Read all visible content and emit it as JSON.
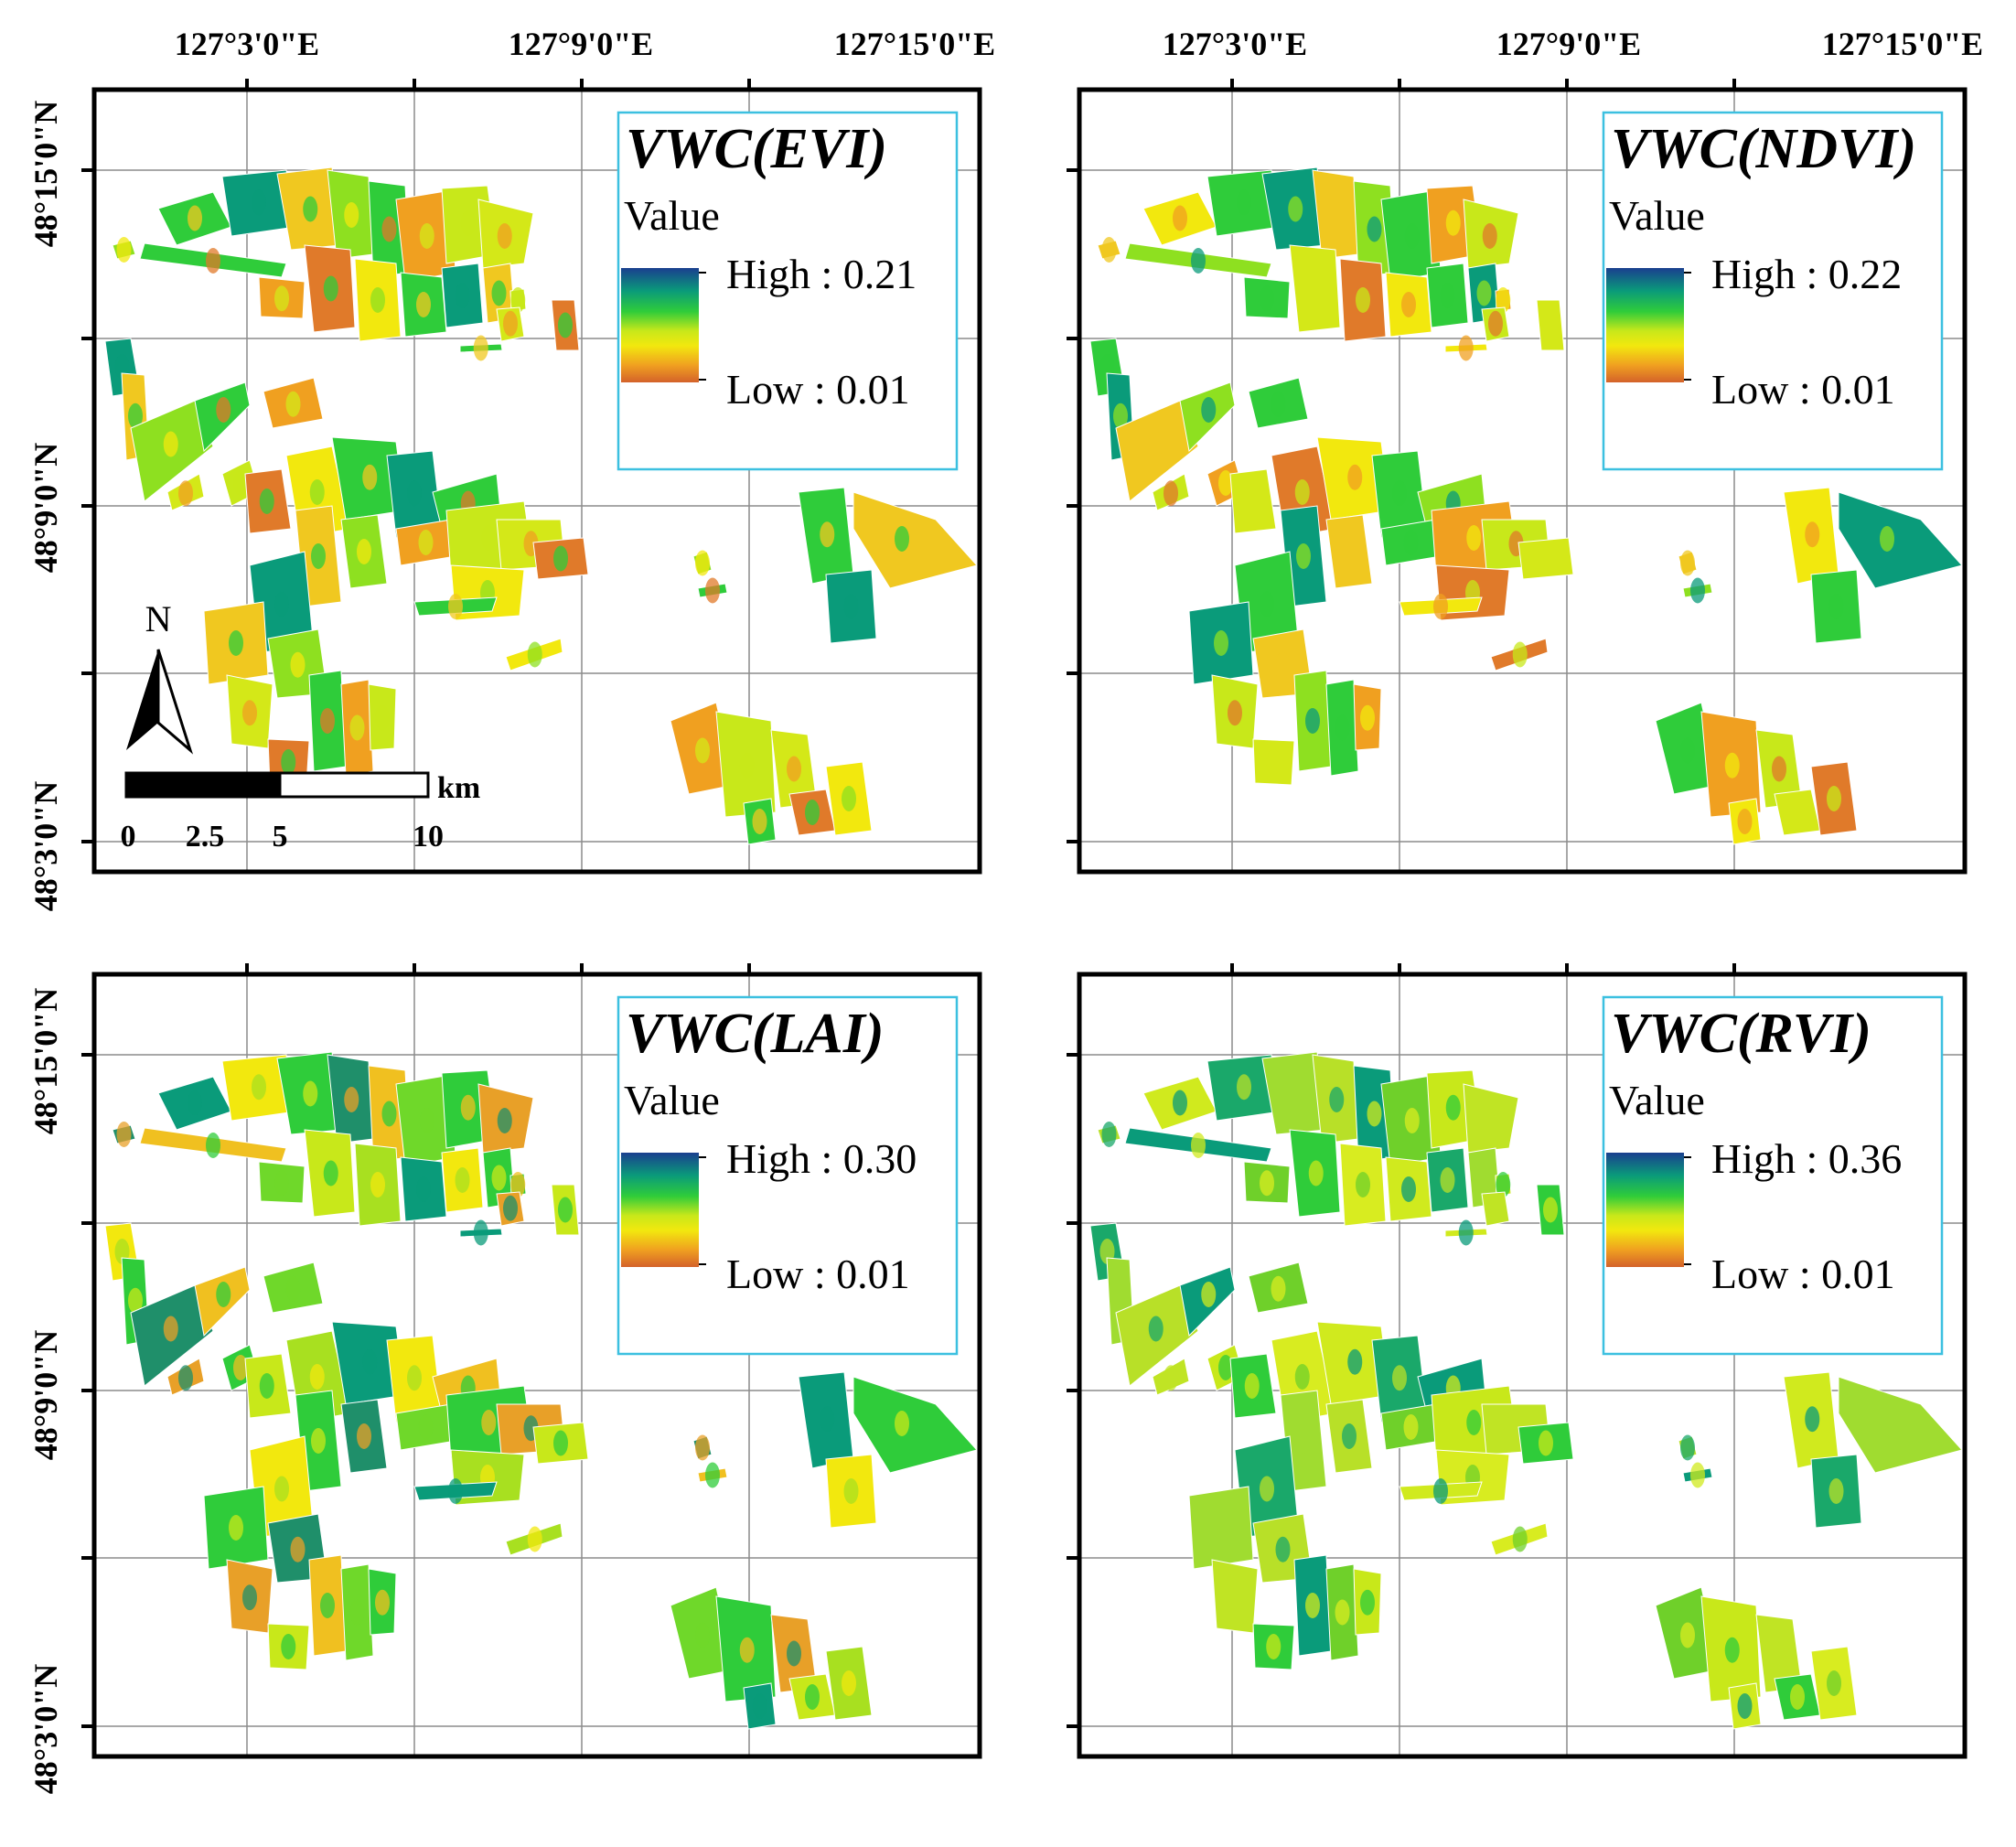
{
  "axes": {
    "top_lon_labels": [
      "127°3'0\"E",
      "127°9'0\"E",
      "127°15'0\"E"
    ],
    "left_lat_labels": [
      "48°15'0\"N",
      "48°9'0\"N",
      "48°3'0\"N"
    ]
  },
  "panels": [
    {
      "id": "evi",
      "title": "VWC(EVI)",
      "legend_heading": "Value",
      "high_label": "High : 0.21",
      "low_label": "Low : 0.01",
      "palette": "warm"
    },
    {
      "id": "ndvi",
      "title": "VWC(NDVI)",
      "legend_heading": "Value",
      "high_label": "High : 0.22",
      "low_label": "Low : 0.01",
      "palette": "warm"
    },
    {
      "id": "lai",
      "title": "VWC(LAI)",
      "legend_heading": "Value",
      "high_label": "High : 0.30",
      "low_label": "Low : 0.01",
      "palette": "mixed"
    },
    {
      "id": "rvi",
      "title": "VWC(RVI)",
      "legend_heading": "Value",
      "high_label": "High : 0.36",
      "low_label": "Low : 0.01",
      "palette": "cool"
    }
  ],
  "north_arrow": {
    "label": "N"
  },
  "scale_bar": {
    "unit": "km",
    "ticks": [
      "0",
      "2.5",
      "5",
      "10"
    ]
  },
  "colors": {
    "frame": "#000000",
    "grid": "#8c8c8c",
    "legend_border": "#3cc0e0",
    "ramp": [
      "#1a3f8f",
      "#0a9b7a",
      "#2fcc3a",
      "#c8e81a",
      "#f2e80e",
      "#f0a020",
      "#d4622a"
    ]
  }
}
